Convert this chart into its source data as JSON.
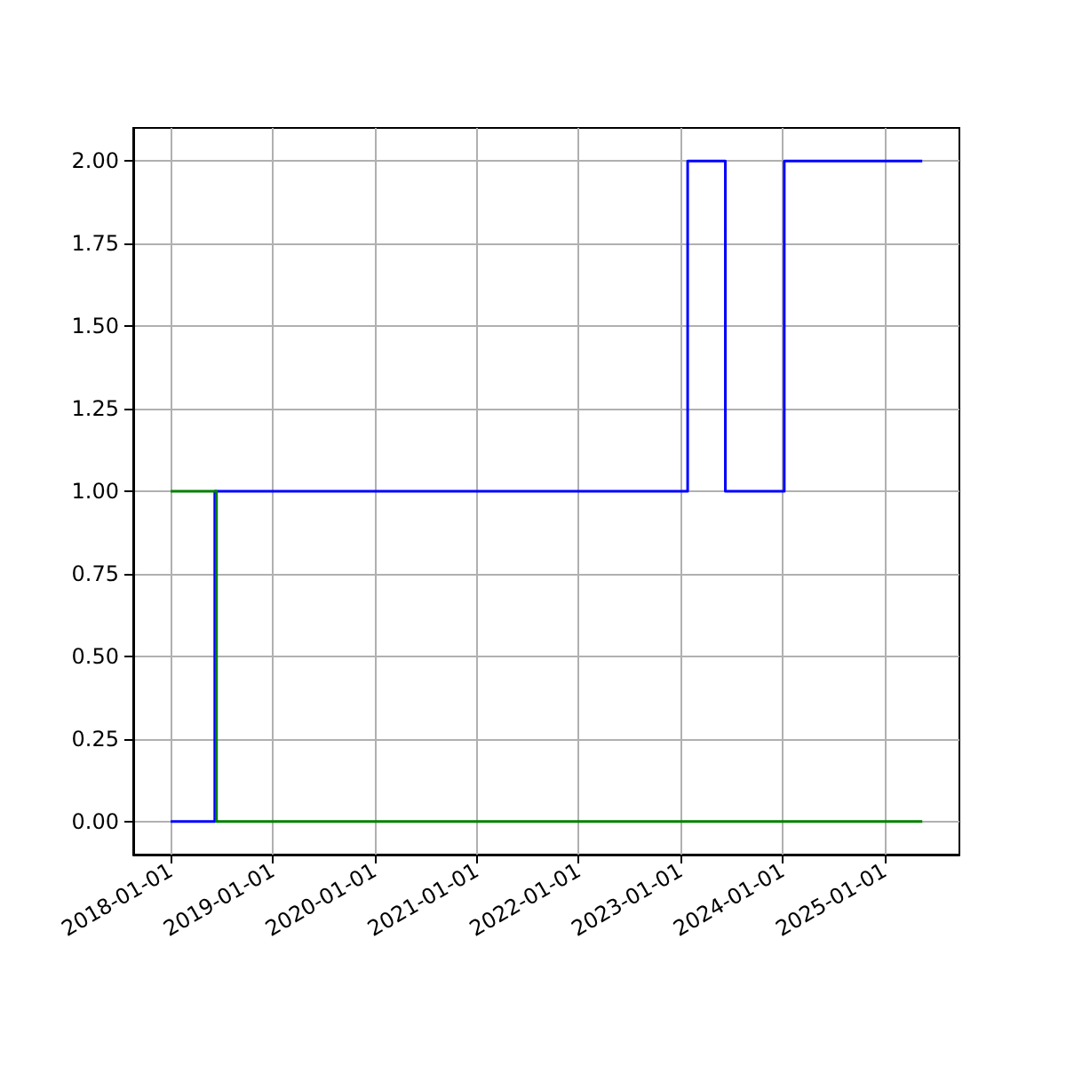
{
  "chart_data": {
    "type": "step",
    "grid": true,
    "xlim": [
      "2017-08-20",
      "2025-09-25"
    ],
    "xticks": [
      "2018-01-01",
      "2019-01-01",
      "2020-01-01",
      "2021-01-01",
      "2022-01-01",
      "2023-01-01",
      "2024-01-01",
      "2025-01-01"
    ],
    "ylim": [
      -0.1,
      2.1
    ],
    "yticks": [
      {
        "value": 0,
        "label": "0.00"
      },
      {
        "value": 0.25,
        "label": "0.25"
      },
      {
        "value": 0.5,
        "label": "0.50"
      },
      {
        "value": 0.75,
        "label": "0.75"
      },
      {
        "value": 1,
        "label": "1.00"
      },
      {
        "value": 1.25,
        "label": "1.25"
      },
      {
        "value": 1.5,
        "label": "1.50"
      },
      {
        "value": 1.75,
        "label": "1.75"
      },
      {
        "value": 2,
        "label": "2.00"
      }
    ],
    "series": [
      {
        "color": "#0000ff",
        "x": [
          "2018-01-01",
          "2018-06-08",
          "2023-01-26",
          "2023-06-10",
          "2024-01-07",
          "2025-05-15"
        ],
        "values": [
          0,
          1,
          2,
          1,
          2,
          2
        ]
      },
      {
        "color": "#008000",
        "x": [
          "2018-01-01",
          "2018-06-14",
          "2025-05-15"
        ],
        "values": [
          1,
          0,
          0
        ]
      }
    ]
  }
}
